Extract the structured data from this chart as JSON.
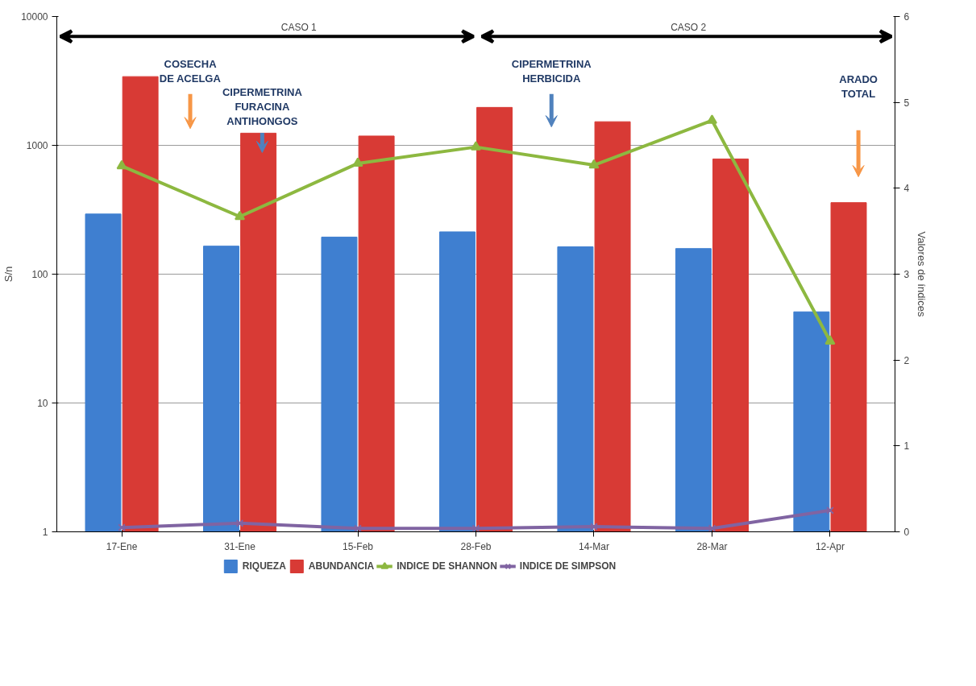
{
  "chart_data": {
    "type": "bar",
    "categories": [
      "17-Ene",
      "31-Ene",
      "15-Feb",
      "28-Feb",
      "14-Mar",
      "28-Mar",
      "12-Apr"
    ],
    "ylabel": "S/n",
    "y2label": "Valores de índices",
    "log": "y",
    "ylim": [
      1,
      10000
    ],
    "yticks": [
      1,
      10,
      100,
      1000,
      10000
    ],
    "y2lim": [
      0,
      6
    ],
    "y2ticks": [
      0,
      1,
      2,
      3,
      4,
      5,
      6
    ],
    "grid": "y",
    "legend": "bottom",
    "series": [
      {
        "name": "RIQUEZA",
        "color": "#3f7fd0",
        "values": [
          293,
          165,
          194,
          213,
          163,
          158,
          51
        ]
      },
      {
        "name": "ABUNDANCIA",
        "color": "#d83a35",
        "values": [
          3415,
          1243,
          1181,
          1970,
          1525,
          784,
          359
        ]
      },
      {
        "name": "INDICE DE SHANNON",
        "type": "line",
        "axis": "y2",
        "marker": "triangle",
        "color": "#8db840",
        "values": [
          4.26,
          3.67,
          4.29,
          4.48,
          4.27,
          4.79,
          2.22
        ]
      },
      {
        "name": "INDICE DE SIMPSON",
        "type": "line",
        "axis": "y2",
        "marker": "cross",
        "color": "#8064a2",
        "values": [
          0.05,
          0.1,
          0.04,
          0.04,
          0.06,
          0.04,
          0.25
        ]
      }
    ],
    "annotations": [
      "CASO 1",
      "CASO 2",
      "COSECHA\nDE ACELGA",
      "CIPERMETRINA\nFURACINA\nANTIHONGOS",
      "CIPERMETRINA\nHERBICIDA",
      "ARADO\nTOTAL"
    ]
  }
}
